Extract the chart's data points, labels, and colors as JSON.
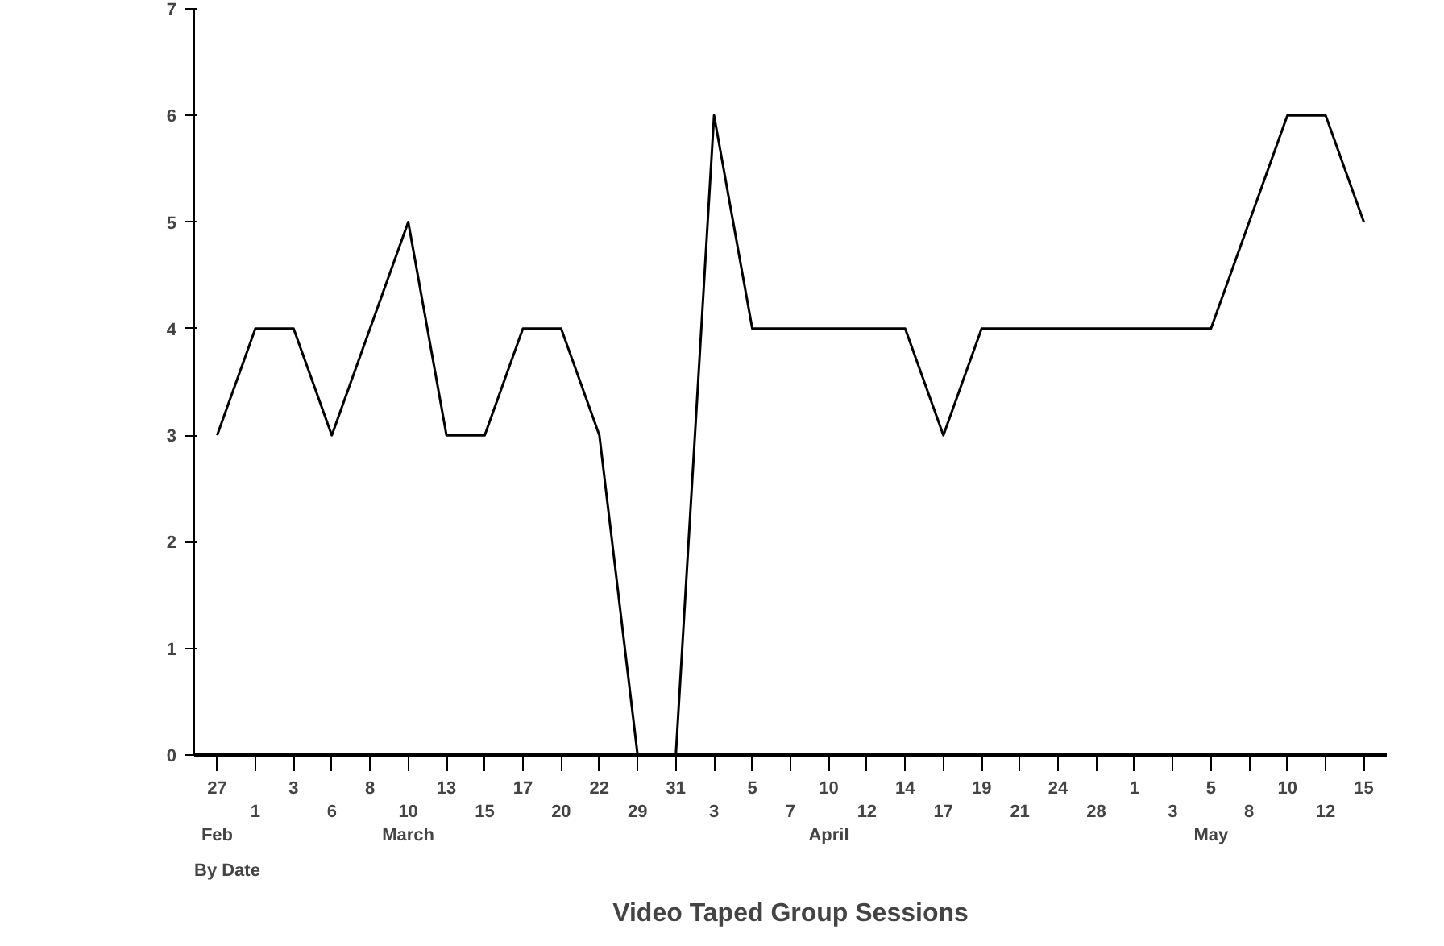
{
  "chart_data": {
    "type": "line",
    "title": "Video Taped Group Sessions",
    "xlabel": "By Date",
    "categories": [
      "27\nFeb",
      "1",
      "3",
      "6",
      "8",
      "10\nMarch",
      "13",
      "15",
      "17",
      "20",
      "22",
      "29",
      "31",
      "3",
      "5",
      "7",
      "10\nApril",
      "12",
      "14",
      "17",
      "19",
      "21",
      "24",
      "28",
      "1",
      "3",
      "5\nMay",
      "8",
      "10",
      "12",
      "15"
    ],
    "series": [
      {
        "color": "#000000",
        "values": [
          3,
          4,
          4,
          3,
          4,
          5,
          3,
          3,
          4,
          4,
          3,
          0,
          0,
          6,
          4,
          4,
          4,
          4,
          4,
          3,
          4,
          4,
          4,
          4,
          4,
          4,
          4,
          5,
          6,
          6,
          5
        ]
      }
    ],
    "ylim": [
      0,
      7
    ],
    "yticks": [
      0,
      1,
      2,
      3,
      4,
      5,
      6,
      7
    ],
    "grid": false,
    "marker": "none",
    "line_style": "solid"
  }
}
